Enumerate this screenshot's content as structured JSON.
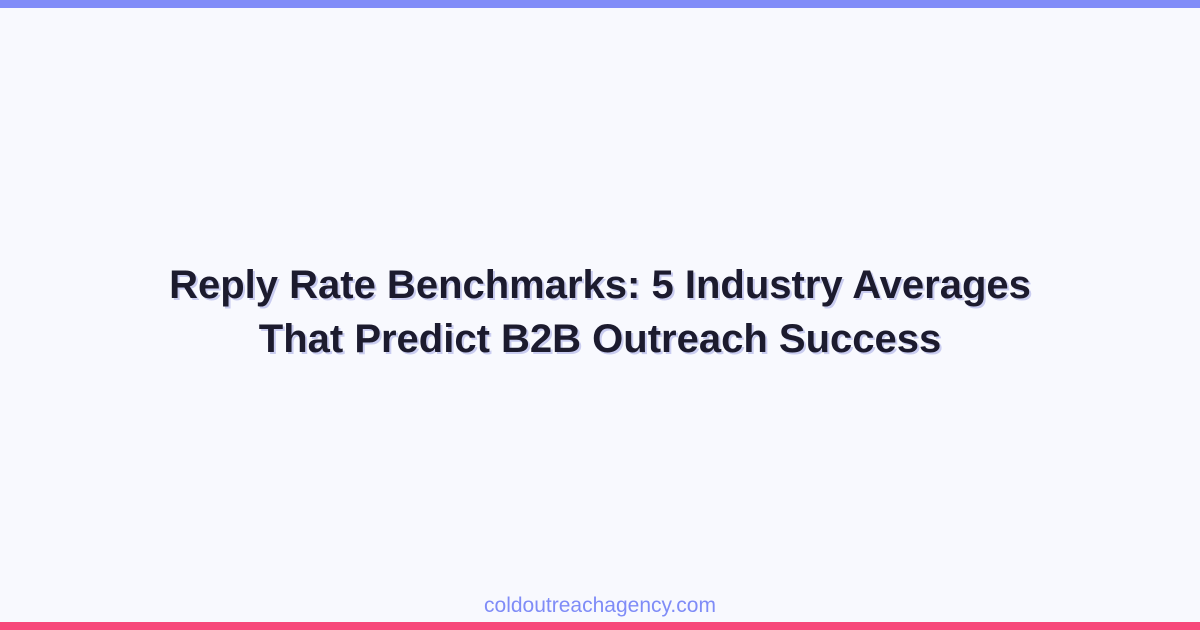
{
  "colors": {
    "top_bar": "#818cf8",
    "bottom_bar": "#f7497a",
    "footer_text": "#7f8cf7",
    "title_text": "#1c1b2e",
    "background": "#f8f9fe"
  },
  "title": {
    "line1": "Reply Rate Benchmarks: 5 Industry Averages",
    "line2": "That Predict B2B Outreach Success"
  },
  "footer": {
    "domain": "coldoutreachagency.com"
  }
}
